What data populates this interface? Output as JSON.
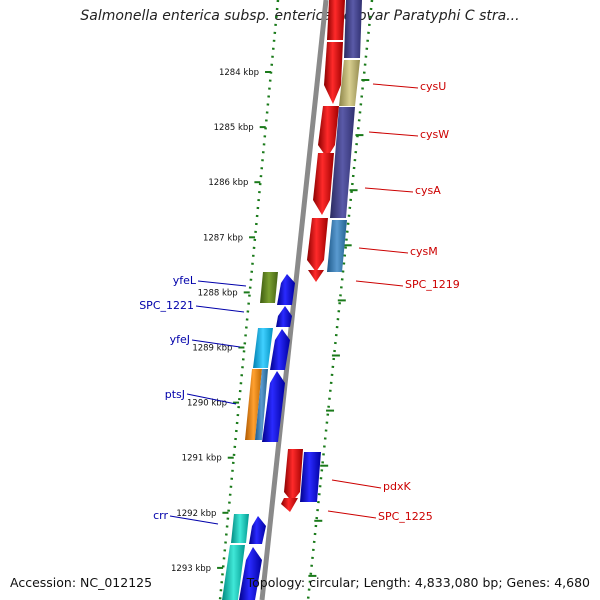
{
  "title": "Salmonella enterica subsp. enterica serovar Paratyphi C stra...",
  "footer": {
    "accession": "Accession: NC_012125",
    "topology": "Topology: circular; Length: 4,833,080 bp; Genes: 4,680"
  },
  "colors": {
    "backbone": "#888888",
    "reverse_strand_label": "#cc0000",
    "forward_strand_label": "#0000aa",
    "tick": "#1a7a1a"
  },
  "kbp_ticks": [
    {
      "kbp": 1284,
      "label": "1284 kbp"
    },
    {
      "kbp": 1285,
      "label": "1285 kbp"
    },
    {
      "kbp": 1286,
      "label": "1286 kbp"
    },
    {
      "kbp": 1287,
      "label": "1287 kbp"
    },
    {
      "kbp": 1288,
      "label": "1288 kbp"
    },
    {
      "kbp": 1289,
      "label": "1289 kbp"
    },
    {
      "kbp": 1290,
      "label": "1290 kbp"
    },
    {
      "kbp": 1291,
      "label": "1291 kbp"
    },
    {
      "kbp": 1292,
      "label": "1292 kbp"
    },
    {
      "kbp": 1293,
      "label": "1293 kbp"
    }
  ],
  "reverse_genes": [
    {
      "name": "cysU",
      "label": "cysU"
    },
    {
      "name": "cysW",
      "label": "cysW"
    },
    {
      "name": "cysA",
      "label": "cysA"
    },
    {
      "name": "cysM",
      "label": "cysM"
    },
    {
      "name": "SPC_1219",
      "label": "SPC_1219"
    },
    {
      "name": "pdxK",
      "label": "pdxK"
    },
    {
      "name": "SPC_1225",
      "label": "SPC_1225"
    }
  ],
  "forward_genes": [
    {
      "name": "yfeL",
      "label": "yfeL"
    },
    {
      "name": "SPC_1221",
      "label": "SPC_1221"
    },
    {
      "name": "yfeJ",
      "label": "yfeJ"
    },
    {
      "name": "ptsJ",
      "label": "ptsJ"
    },
    {
      "name": "crr",
      "label": "crr"
    }
  ]
}
